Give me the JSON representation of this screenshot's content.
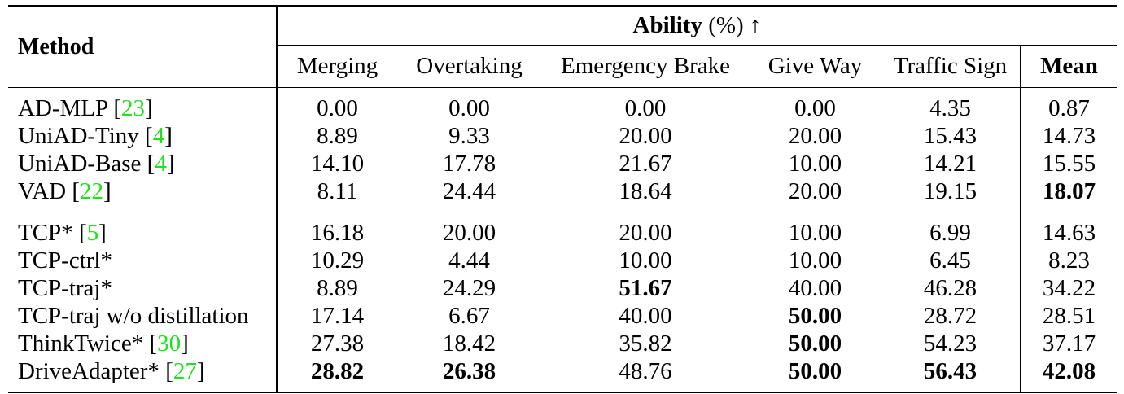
{
  "table": {
    "method_header": "Method",
    "group_header": {
      "bold": "Ability",
      "rest": "(%) ↑"
    },
    "columns": [
      "Merging",
      "Overtaking",
      "Emergency Brake",
      "Give Way",
      "Traffic Sign",
      "Mean"
    ],
    "sections": [
      {
        "rows": [
          {
            "method": "AD-MLP",
            "cite": "23",
            "values": [
              "0.00",
              "0.00",
              "0.00",
              "0.00",
              "4.35",
              "0.87"
            ],
            "bold": []
          },
          {
            "method": "UniAD-Tiny",
            "cite": "4",
            "values": [
              "8.89",
              "9.33",
              "20.00",
              "20.00",
              "15.43",
              "14.73"
            ],
            "bold": []
          },
          {
            "method": "UniAD-Base",
            "cite": "4",
            "values": [
              "14.10",
              "17.78",
              "21.67",
              "10.00",
              "14.21",
              "15.55"
            ],
            "bold": []
          },
          {
            "method": "VAD",
            "cite": "22",
            "values": [
              "8.11",
              "24.44",
              "18.64",
              "20.00",
              "19.15",
              "18.07"
            ],
            "bold": [
              5
            ]
          }
        ]
      },
      {
        "rows": [
          {
            "method": "TCP*",
            "cite": "5",
            "values": [
              "16.18",
              "20.00",
              "20.00",
              "10.00",
              "6.99",
              "14.63"
            ],
            "bold": []
          },
          {
            "method": "TCP-ctrl*",
            "cite": "",
            "values": [
              "10.29",
              "4.44",
              "10.00",
              "10.00",
              "6.45",
              "8.23"
            ],
            "bold": []
          },
          {
            "method": "TCP-traj*",
            "cite": "",
            "values": [
              "8.89",
              "24.29",
              "51.67",
              "40.00",
              "46.28",
              "34.22"
            ],
            "bold": [
              2
            ]
          },
          {
            "method": "TCP-traj w/o distillation",
            "cite": "",
            "values": [
              "17.14",
              "6.67",
              "40.00",
              "50.00",
              "28.72",
              "28.51"
            ],
            "bold": [
              3
            ]
          },
          {
            "method": "ThinkTwice*",
            "cite": "30",
            "values": [
              "27.38",
              "18.42",
              "35.82",
              "50.00",
              "54.23",
              "37.17"
            ],
            "bold": [
              3
            ]
          },
          {
            "method": "DriveAdapter*",
            "cite": "27",
            "values": [
              "28.82",
              "26.38",
              "48.76",
              "50.00",
              "56.43",
              "42.08"
            ],
            "bold": [
              0,
              1,
              3,
              4,
              5
            ]
          }
        ]
      }
    ]
  }
}
